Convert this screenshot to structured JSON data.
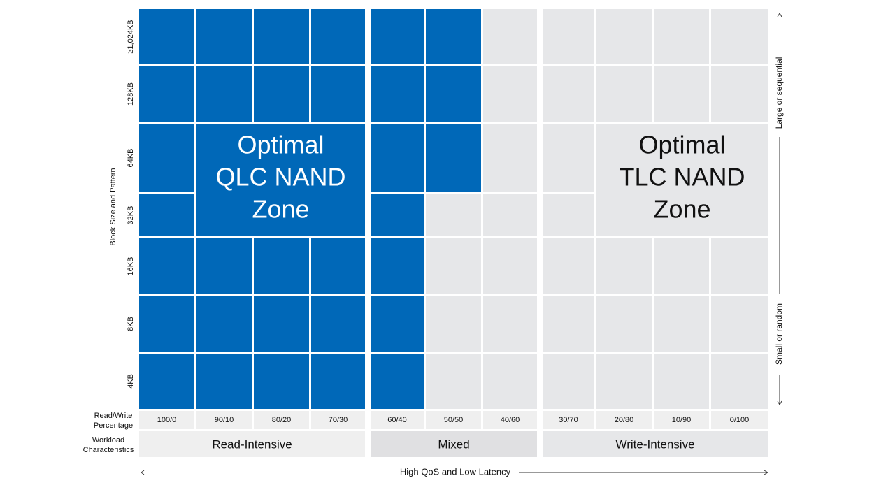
{
  "y_axis_label": "Block Size and Pattern",
  "rows": [
    "≥1,024KB",
    "128KB",
    "64KB",
    "32KB",
    "16KB",
    "8KB",
    "4KB"
  ],
  "row_header_rw": [
    "Read/Write",
    "Percentage"
  ],
  "row_header_workload": [
    "Workload",
    "Characteristics"
  ],
  "columns": [
    "100/0",
    "90/10",
    "80/20",
    "70/30",
    "60/40",
    "50/50",
    "40/60",
    "30/70",
    "20/80",
    "10/90",
    "0/100"
  ],
  "groups": [
    "Read-Intensive",
    "Mixed",
    "Write-Intensive"
  ],
  "zones": [
    [
      "Optimal",
      "QLC NAND",
      "Zone"
    ],
    [
      "Optimal",
      "TLC NAND",
      "Zone"
    ]
  ],
  "right_axis": {
    "top": "Large or sequential",
    "bottom": "Small or random"
  },
  "x_axis_label": "High QoS and Low Latency"
}
